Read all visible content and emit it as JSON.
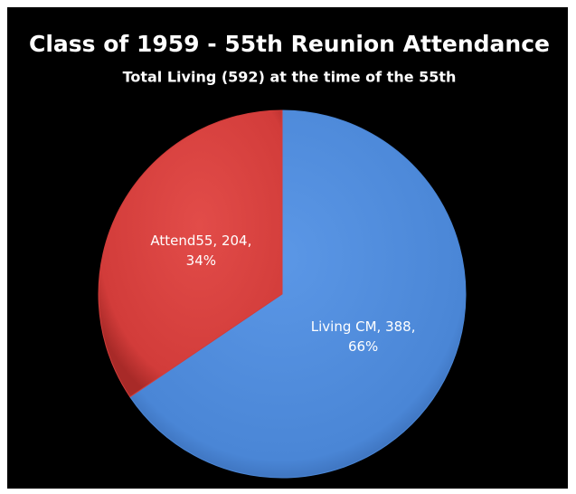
{
  "chart_data": {
    "type": "pie",
    "title": "Class of 1959 -  55th Reunion Attendance",
    "subtitle": "Total Living (592) at the time of the  55th",
    "values": [
      388,
      204
    ],
    "value_labels": [
      [
        "Living CM, 388,",
        "66%"
      ],
      [
        "Attend55, 204,",
        "34%"
      ]
    ],
    "colors": [
      "#4a86d6",
      "#d23c3a"
    ]
  }
}
